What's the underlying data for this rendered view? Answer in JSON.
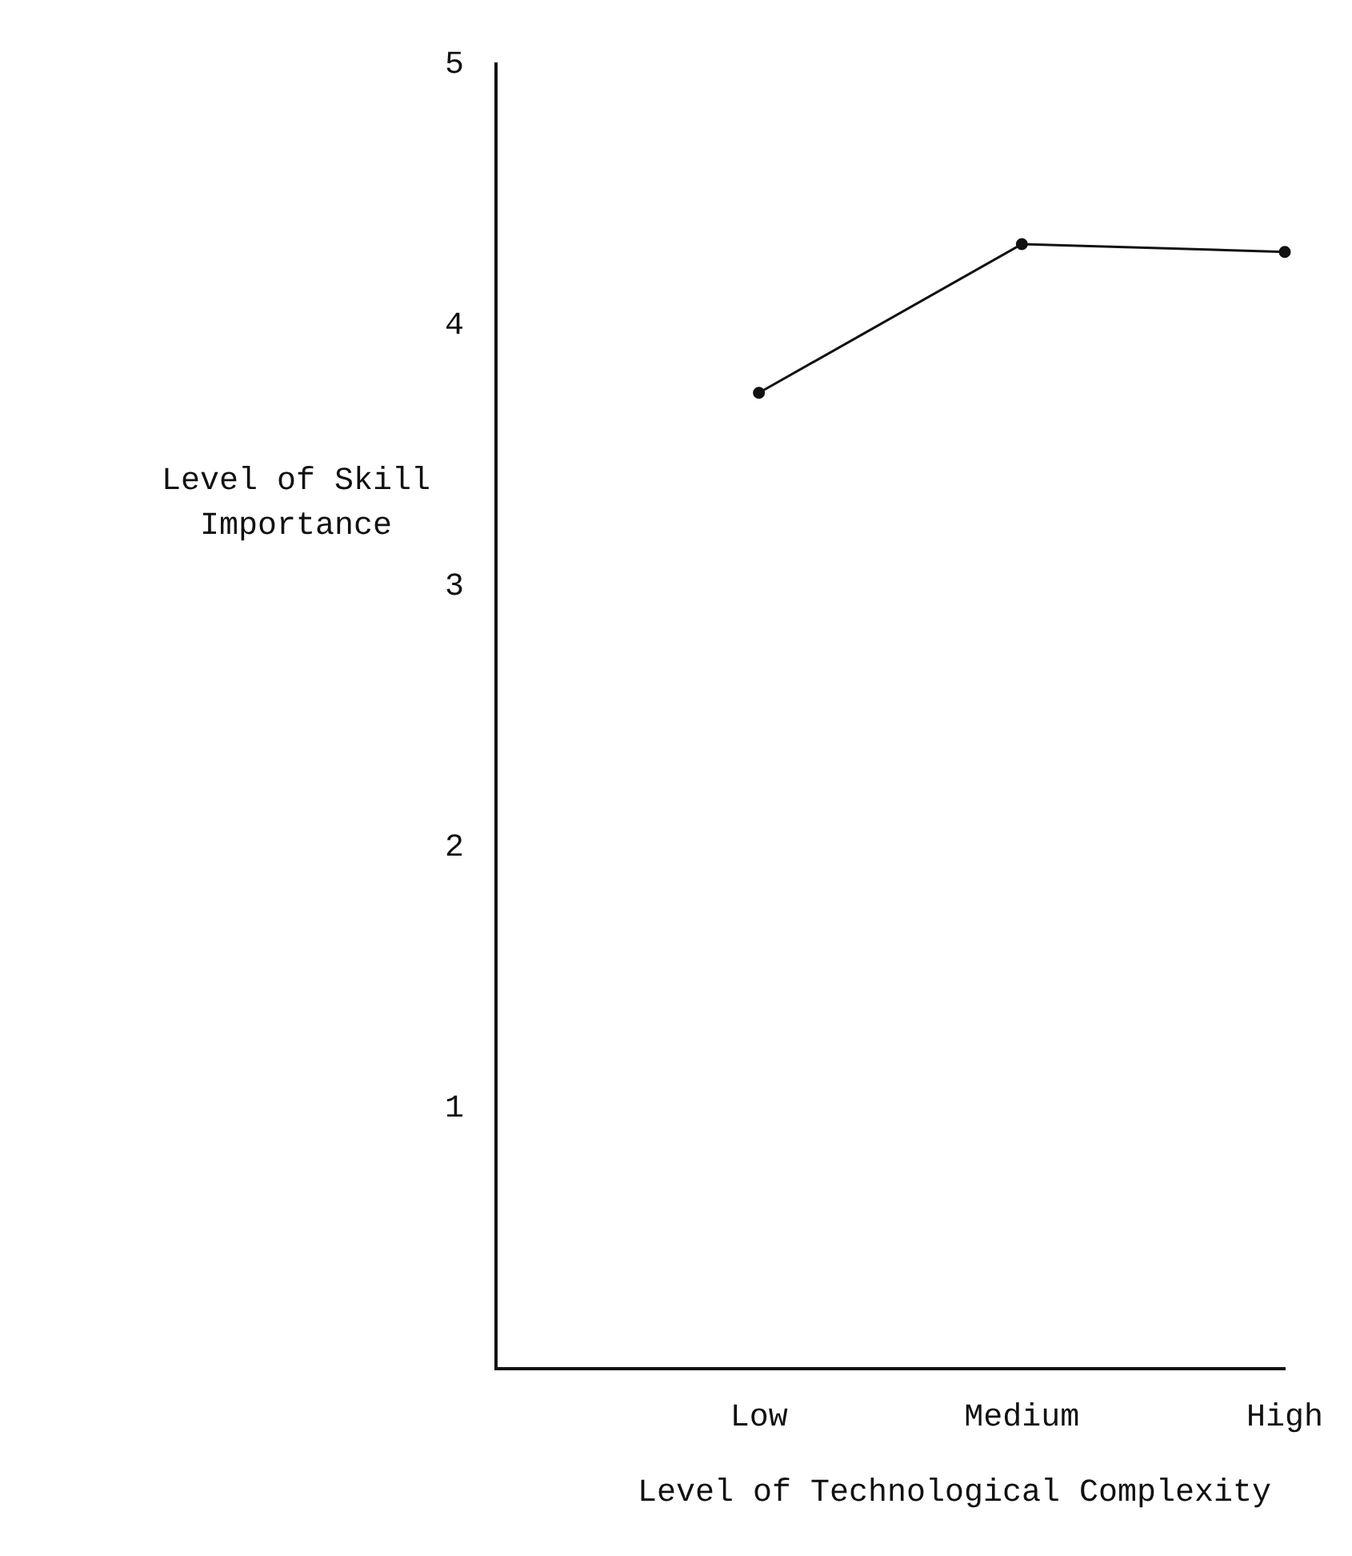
{
  "chart_data": {
    "type": "line",
    "xlabel": "Level of Technological Complexity",
    "ylabel": "Level of Skill Importance",
    "categories": [
      null,
      "Low",
      "Medium",
      "High"
    ],
    "series": [
      {
        "color": "#111111",
        "values": [
          null,
          3.74,
          4.31,
          4.28
        ]
      }
    ],
    "ylim": [
      0,
      5
    ],
    "yticks": [
      1,
      2,
      3,
      4,
      5
    ],
    "grid": false,
    "legend": false,
    "marker": "circle",
    "line_style": "solid"
  }
}
